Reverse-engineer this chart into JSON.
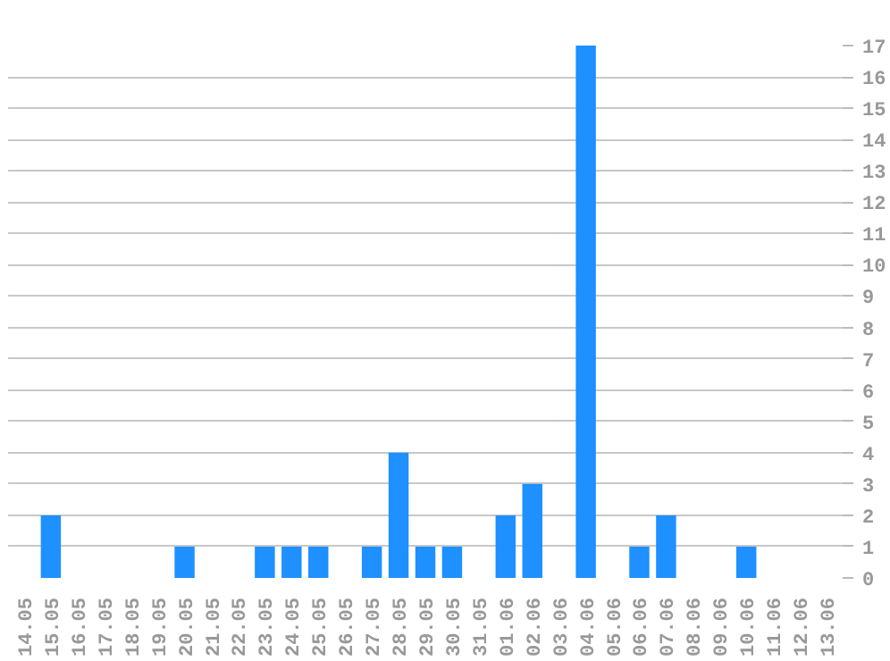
{
  "chart_data": {
    "type": "bar",
    "categories": [
      "14.05",
      "15.05",
      "16.05",
      "17.05",
      "18.05",
      "19.05",
      "20.05",
      "21.05",
      "22.05",
      "23.05",
      "24.05",
      "25.05",
      "26.05",
      "27.05",
      "28.05",
      "29.05",
      "30.05",
      "31.05",
      "01.06",
      "02.06",
      "03.06",
      "04.06",
      "05.06",
      "06.06",
      "07.06",
      "08.06",
      "09.06",
      "10.06",
      "11.06",
      "12.06",
      "13.06"
    ],
    "values": [
      0,
      2,
      0,
      0,
      0,
      0,
      1,
      0,
      0,
      1,
      1,
      1,
      0,
      1,
      4,
      1,
      1,
      0,
      2,
      3,
      0,
      17,
      0,
      1,
      2,
      0,
      0,
      1,
      0,
      0,
      0
    ],
    "color": "#1e90ff",
    "ylim": [
      0,
      17
    ],
    "yticks": [
      0,
      1,
      2,
      3,
      4,
      5,
      6,
      7,
      8,
      9,
      10,
      11,
      12,
      13,
      14,
      15,
      16,
      17
    ],
    "grid": "y"
  }
}
